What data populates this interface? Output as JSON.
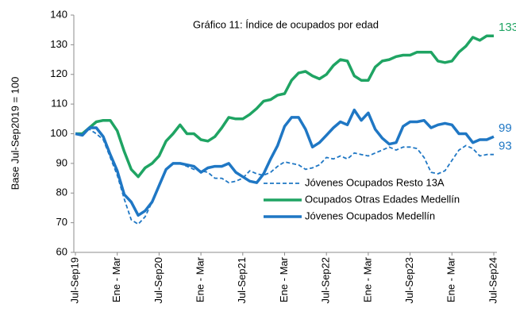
{
  "chart_data": {
    "type": "line",
    "title": "Gráfico 11: Índice de ocupados por edad",
    "y_label": "Base Jul-Sep2019 = 100",
    "categories": [
      "Jul-Sep19",
      null,
      null,
      null,
      null,
      null,
      "Ene - Mar",
      null,
      null,
      null,
      null,
      null,
      "Jul-Sep20",
      null,
      null,
      null,
      null,
      null,
      "Ene - Mar",
      null,
      null,
      null,
      null,
      null,
      "Jul-Sep21",
      null,
      null,
      null,
      null,
      null,
      "Ene - Mar",
      null,
      null,
      null,
      null,
      null,
      "Jul-Sep22",
      null,
      null,
      null,
      null,
      null,
      "Ene - Mar",
      null,
      null,
      null,
      null,
      null,
      "Jul-Sep23",
      null,
      null,
      null,
      null,
      null,
      "Ene - Mar",
      null,
      null,
      null,
      null,
      null,
      "Jul-Sep24"
    ],
    "series": [
      {
        "name": "Jóvenes Ocupados Resto 13A",
        "color": "#1f77c4",
        "dash": true,
        "values": [
          100,
          100,
          101.5,
          100,
          98,
          92,
          86,
          78,
          71,
          69.5,
          72,
          77,
          83,
          88,
          90,
          90,
          89,
          88,
          87.5,
          87,
          85,
          85,
          83.5,
          84,
          85,
          87.5,
          86.5,
          86,
          87,
          89,
          90.5,
          90,
          89.5,
          88,
          88.5,
          89.5,
          92,
          91.5,
          92.5,
          91.5,
          93.5,
          93,
          92.5,
          93.5,
          94.5,
          95.5,
          94.5,
          95.5,
          95.5,
          95,
          92,
          87,
          86.5,
          87.5,
          91,
          94.5,
          96,
          95,
          92.5,
          93,
          93
        ]
      },
      {
        "name": "Ocupados Otras Edades Medellín",
        "color": "#1fa463",
        "dash": false,
        "values": [
          100,
          100,
          102,
          104,
          104.5,
          104.5,
          101,
          94,
          88,
          85.5,
          88.5,
          90,
          92.5,
          97.5,
          100,
          103,
          100,
          100,
          98,
          97.5,
          99,
          102,
          105.5,
          105,
          105,
          106.5,
          108.5,
          111,
          111.5,
          113,
          113.5,
          118,
          120.5,
          121,
          119.5,
          118.5,
          120,
          123,
          125,
          124.5,
          119.5,
          118,
          118,
          122.5,
          124.5,
          125,
          126,
          126.5,
          126.5,
          127.5,
          127.5,
          127.5,
          124.5,
          124,
          124.5,
          127.5,
          129.5,
          132.5,
          131.5,
          133,
          133
        ]
      },
      {
        "name": "Jóvenes Ocupados Medellín",
        "color": "#1f77c4",
        "dash": false,
        "values": [
          100,
          99.5,
          102,
          102,
          99,
          93,
          87.5,
          79.5,
          77,
          72.5,
          74,
          77,
          82.5,
          88,
          90,
          90,
          89.5,
          89,
          87,
          88.5,
          89,
          89,
          90,
          87,
          85.5,
          84,
          83.5,
          86.5,
          91.5,
          96,
          102.5,
          105.5,
          105.5,
          101.5,
          95.5,
          97,
          99.5,
          102,
          104,
          103,
          108,
          104.5,
          107,
          101.5,
          98.5,
          96.5,
          97,
          102.5,
          104,
          104,
          104.5,
          102,
          103,
          103.5,
          103,
          100,
          100,
          97,
          98,
          98,
          99
        ]
      }
    ],
    "ylim": [
      60,
      140
    ],
    "yticks": [
      60,
      70,
      80,
      90,
      100,
      110,
      120,
      130,
      140
    ]
  }
}
